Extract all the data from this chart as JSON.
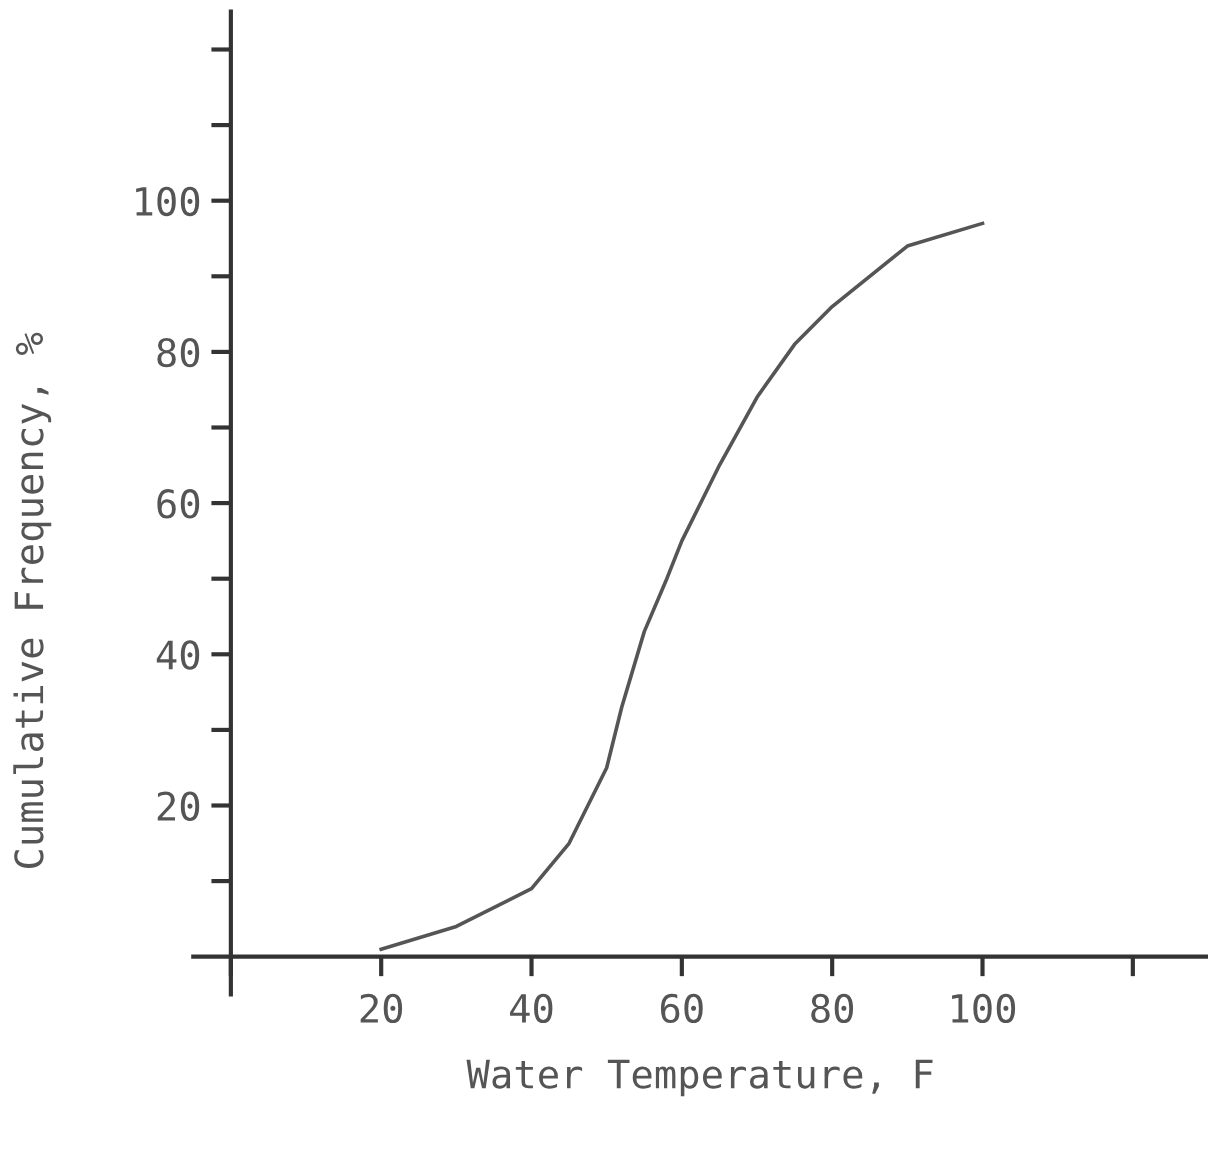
{
  "chart_data": {
    "type": "line",
    "xlabel": "Water Temperature, F",
    "ylabel": "Cumulative Frequency, %",
    "x": [
      20,
      30,
      40,
      45,
      50,
      52,
      55,
      58,
      60,
      65,
      70,
      75,
      80,
      90,
      100
    ],
    "values": [
      1,
      4,
      9,
      15,
      25,
      33,
      43,
      50,
      55,
      65,
      74,
      81,
      86,
      94,
      97
    ],
    "color": "#555555",
    "marker": "none",
    "line_style": "solid",
    "grid": false,
    "xlim": [
      -5,
      130
    ],
    "ylim": [
      -5,
      125
    ],
    "xticks": [
      {
        "value": 0,
        "label": null
      },
      20,
      40,
      60,
      80,
      100,
      {
        "value": 120,
        "label": null
      }
    ],
    "yticks": [
      {
        "value": 10,
        "label": null
      },
      20,
      {
        "value": 30,
        "label": null
      },
      40,
      {
        "value": 50,
        "label": null
      },
      60,
      {
        "value": 70,
        "label": null
      },
      80,
      {
        "value": 90,
        "label": null
      },
      100,
      {
        "value": 110,
        "label": null
      },
      {
        "value": 120,
        "label": null
      }
    ]
  }
}
